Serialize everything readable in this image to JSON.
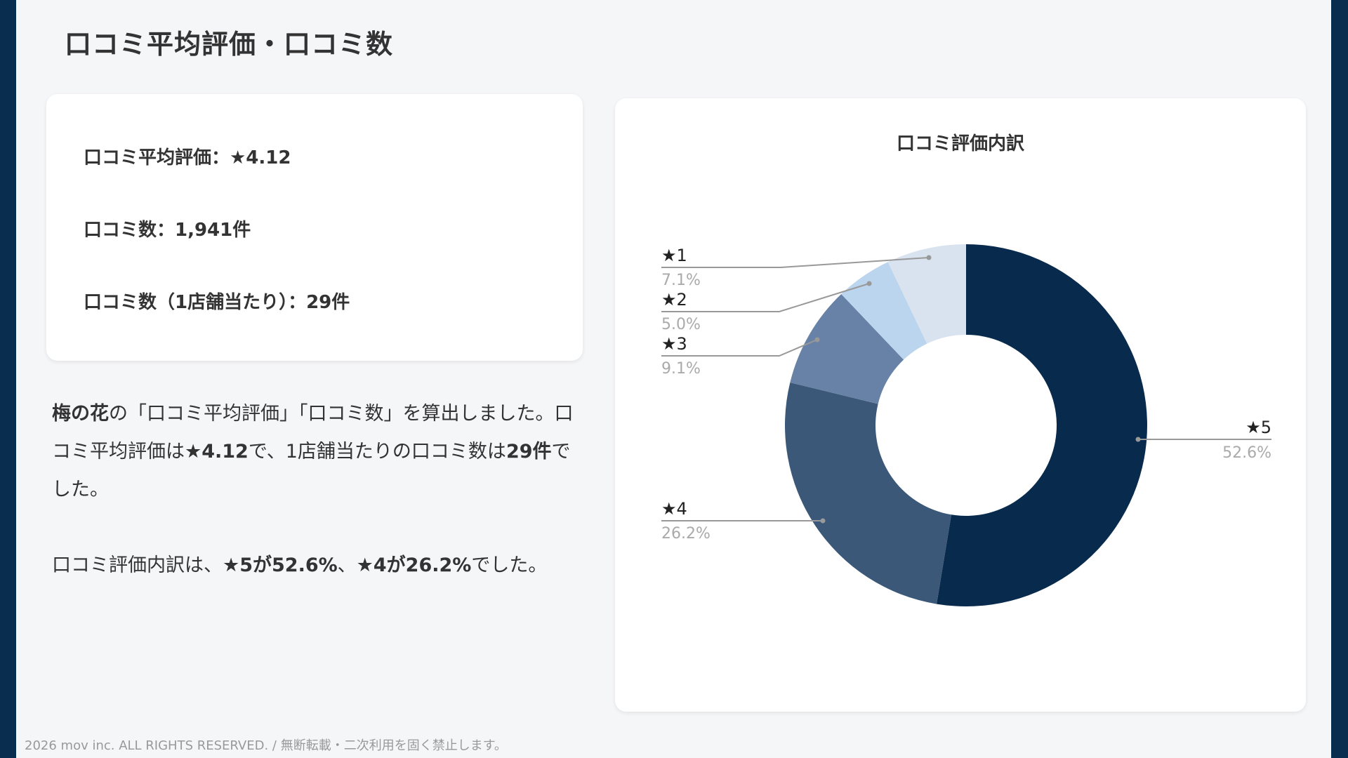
{
  "page": {
    "title": "口コミ平均評価・口コミ数"
  },
  "stats": {
    "average_rating": "口コミ平均評価：★4.12",
    "review_count": "口コミ数：1,941件",
    "per_store": "口コミ数（1店舗当たり）：29件"
  },
  "summary": {
    "p1": [
      {
        "text": "梅の花",
        "bold": true
      },
      {
        "text": "の「口コミ平均評価」「口コミ数」を算出しました。口コミ平均評価は",
        "bold": false
      },
      {
        "text": "★4.12",
        "bold": true
      },
      {
        "text": "で、1店舗当たりの口コミ数は",
        "bold": false
      },
      {
        "text": "29件",
        "bold": true
      },
      {
        "text": "でした。",
        "bold": false
      }
    ],
    "p2": [
      {
        "text": "口コミ評価内訳は、",
        "bold": false
      },
      {
        "text": "★5が52.6%",
        "bold": true
      },
      {
        "text": "、",
        "bold": false
      },
      {
        "text": "★4が26.2%",
        "bold": true
      },
      {
        "text": "でした。",
        "bold": false
      }
    ]
  },
  "footer": {
    "text": "2026 mov inc. ALL RIGHTS RESERVED. / 無断転載・二次利用を固く禁止します。"
  },
  "colors": {
    "sidebar": "#092d4f",
    "background": "#f5f6f8",
    "leader_line": "#999999",
    "label_text": "#222222",
    "pct_text": "#aaaaaa"
  },
  "chart_data": {
    "type": "pie",
    "subtype": "donut",
    "title": "口コミ評価内訳",
    "categories": [
      "★5",
      "★4",
      "★3",
      "★2",
      "★1"
    ],
    "values": [
      52.6,
      26.2,
      9.1,
      5.0,
      7.1
    ],
    "value_labels": [
      "52.6%",
      "26.2%",
      "9.1%",
      "5.0%",
      "7.1%"
    ],
    "colors": [
      "#082b4d",
      "#3b5878",
      "#6782a6",
      "#bcd5ee",
      "#d9e3ef"
    ],
    "start_angle": "top, clockwise",
    "legend": "none (leader-line labels)",
    "unit": "%"
  }
}
